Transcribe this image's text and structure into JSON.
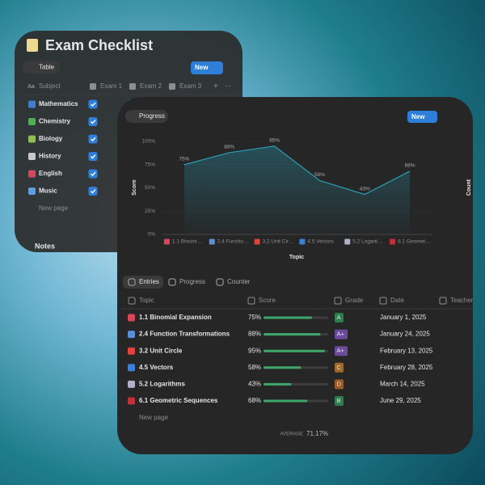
{
  "checklist": {
    "title": "Exam Checklist",
    "view": "Table",
    "new_button": "New",
    "columns": [
      "Subject",
      "Exam 1",
      "Exam 2",
      "Exam 3"
    ],
    "rows": [
      {
        "subject": "Mathematics",
        "exam1": true,
        "exam2": false,
        "icon_color": "#3d7fd6"
      },
      {
        "subject": "Chemistry",
        "exam1": true,
        "icon_color": "#4caf50"
      },
      {
        "subject": "Biology",
        "exam1": true,
        "icon_color": "#8bc34a"
      },
      {
        "subject": "History",
        "exam1": true,
        "icon_color": "#c8c8c8"
      },
      {
        "subject": "English",
        "exam1": true,
        "icon_color": "#d9465a"
      },
      {
        "subject": "Music",
        "exam1": true,
        "icon_color": "#5aa0e6"
      }
    ],
    "new_page": "New page",
    "notes": "Notes"
  },
  "chart_data": {
    "type": "line",
    "tab": "Progress",
    "new_button": "New",
    "categories": [
      "1.1 Binomi…",
      "2.4 Functio…",
      "3.2 Unit Cir…",
      "4.5 Vectors",
      "5.2 Logarit…",
      "6.1 Geomet…"
    ],
    "category_colors": [
      "#d9465a",
      "#5a8fd6",
      "#e0413a",
      "#3d7fd6",
      "#b0b0c8",
      "#c0303a"
    ],
    "values": [
      75,
      88,
      95,
      58,
      43,
      68
    ],
    "value_labels": [
      "75%",
      "88%",
      "95%",
      "58%",
      "43%",
      "68%"
    ],
    "ylim": [
      0,
      100
    ],
    "yticks": [
      {
        "value": 0,
        "label": "0%"
      },
      {
        "value": 25,
        "label": "25%"
      },
      {
        "value": 50,
        "label": "50%"
      },
      {
        "value": 75,
        "label": "75%"
      },
      {
        "value": 100,
        "label": "100%"
      }
    ],
    "ylabel": "Score",
    "y2label": "Count",
    "xlabel": "Topic",
    "color": "#2a9db5"
  },
  "table": {
    "tabs": [
      "Entries",
      "Progress",
      "Counter"
    ],
    "columns": [
      "Topic",
      "Score",
      "Grade",
      "Date",
      "Teacher F"
    ],
    "rows": [
      {
        "topic": "1.1 Binomial Expansion",
        "score": 75,
        "score_label": "75%",
        "grade": "A",
        "grade_color": "#2f7d4f",
        "date": "January 1, 2025"
      },
      {
        "topic": "2.4 Function Transformations",
        "score": 88,
        "score_label": "88%",
        "grade": "A+",
        "grade_color": "#6a4a9c",
        "date": "January 24, 2025"
      },
      {
        "topic": "3.2 Unit Circle",
        "score": 95,
        "score_label": "95%",
        "grade": "A+",
        "grade_color": "#6a4a9c",
        "date": "February 13, 2025"
      },
      {
        "topic": "4.5 Vectors",
        "score": 58,
        "score_label": "58%",
        "grade": "C",
        "grade_color": "#a06a2c",
        "date": "February 28, 2025"
      },
      {
        "topic": "5.2 Logarithms",
        "score": 43,
        "score_label": "43%",
        "grade": "D",
        "grade_color": "#9a5a2a",
        "date": "March 14, 2025"
      },
      {
        "topic": "6.1 Geometric Sequences",
        "score": 68,
        "score_label": "68%",
        "grade": "B",
        "grade_color": "#2f7d4f",
        "date": "June 29, 2025"
      }
    ],
    "score_max": 100,
    "new_page": "New page",
    "average_label": "AVERAGE",
    "average": "71.17%"
  }
}
